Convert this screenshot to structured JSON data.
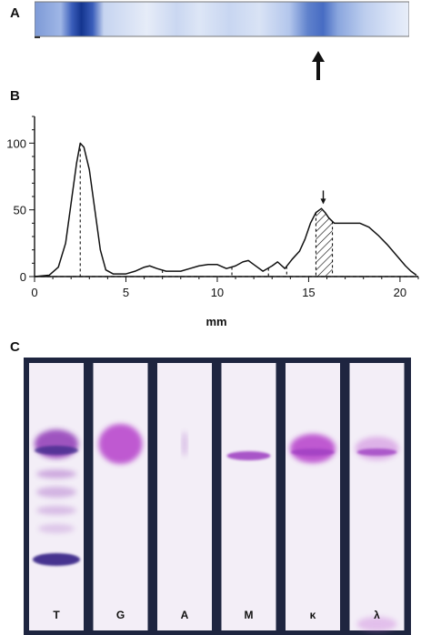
{
  "panels": {
    "a": {
      "letter": "A"
    },
    "b": {
      "letter": "B"
    },
    "c": {
      "letter": "C"
    }
  },
  "chart_data": {
    "type": "line",
    "title": "",
    "xlabel": "mm",
    "ylabel": "",
    "xlim": [
      0,
      21
    ],
    "ylim": [
      0,
      120
    ],
    "x_ticks": [
      0,
      5,
      10,
      15,
      20
    ],
    "y_ticks": [
      0,
      50,
      100
    ],
    "grid": false,
    "legend": "none",
    "series": [
      {
        "x": [
          0,
          0.8,
          1.3,
          1.7,
          2.0,
          2.3,
          2.5,
          2.7,
          3.0,
          3.3,
          3.6,
          3.9,
          4.3,
          5.0,
          5.5,
          6.0,
          6.3,
          6.7,
          7.2,
          8.0,
          8.5,
          9.0,
          9.5,
          10.0,
          10.5,
          11.0,
          11.4,
          11.7,
          12.0,
          12.5,
          13.0,
          13.3,
          13.7,
          14.1,
          14.5,
          14.8,
          15.1,
          15.4,
          15.7,
          15.9,
          16.1,
          16.4,
          16.8,
          17.3,
          17.8,
          18.3,
          18.8,
          19.3,
          19.8,
          20.3,
          20.6,
          20.9
        ],
        "y": [
          0,
          1,
          7,
          25,
          55,
          85,
          100,
          97,
          80,
          50,
          20,
          5,
          2,
          2,
          4,
          7,
          8,
          6,
          4,
          4,
          6,
          8,
          9,
          9,
          6,
          8,
          11,
          12,
          9,
          4,
          8,
          11,
          6,
          13,
          19,
          28,
          40,
          48,
          51,
          48,
          44,
          40,
          40,
          40,
          40,
          37,
          31,
          24,
          16,
          8,
          4,
          1
        ]
      }
    ],
    "baseline": 0,
    "dashed_drops": [
      2.5,
      7.0,
      10.8,
      12.8,
      13.8,
      15.4,
      16.3
    ],
    "hatched_range": [
      15.4,
      16.3
    ],
    "peak_arrow_x": 15.8
  },
  "gel": {
    "lanes": [
      {
        "label": "T"
      },
      {
        "label": "G"
      },
      {
        "label": "A"
      },
      {
        "label": "M"
      },
      {
        "label": "κ"
      },
      {
        "label": "λ"
      }
    ]
  },
  "colors": {
    "strip_blue": "#1c3f98",
    "gel_purple": "#8a2fb2",
    "gel_dark": "#3d2a8a",
    "frame": "#1e2540"
  }
}
